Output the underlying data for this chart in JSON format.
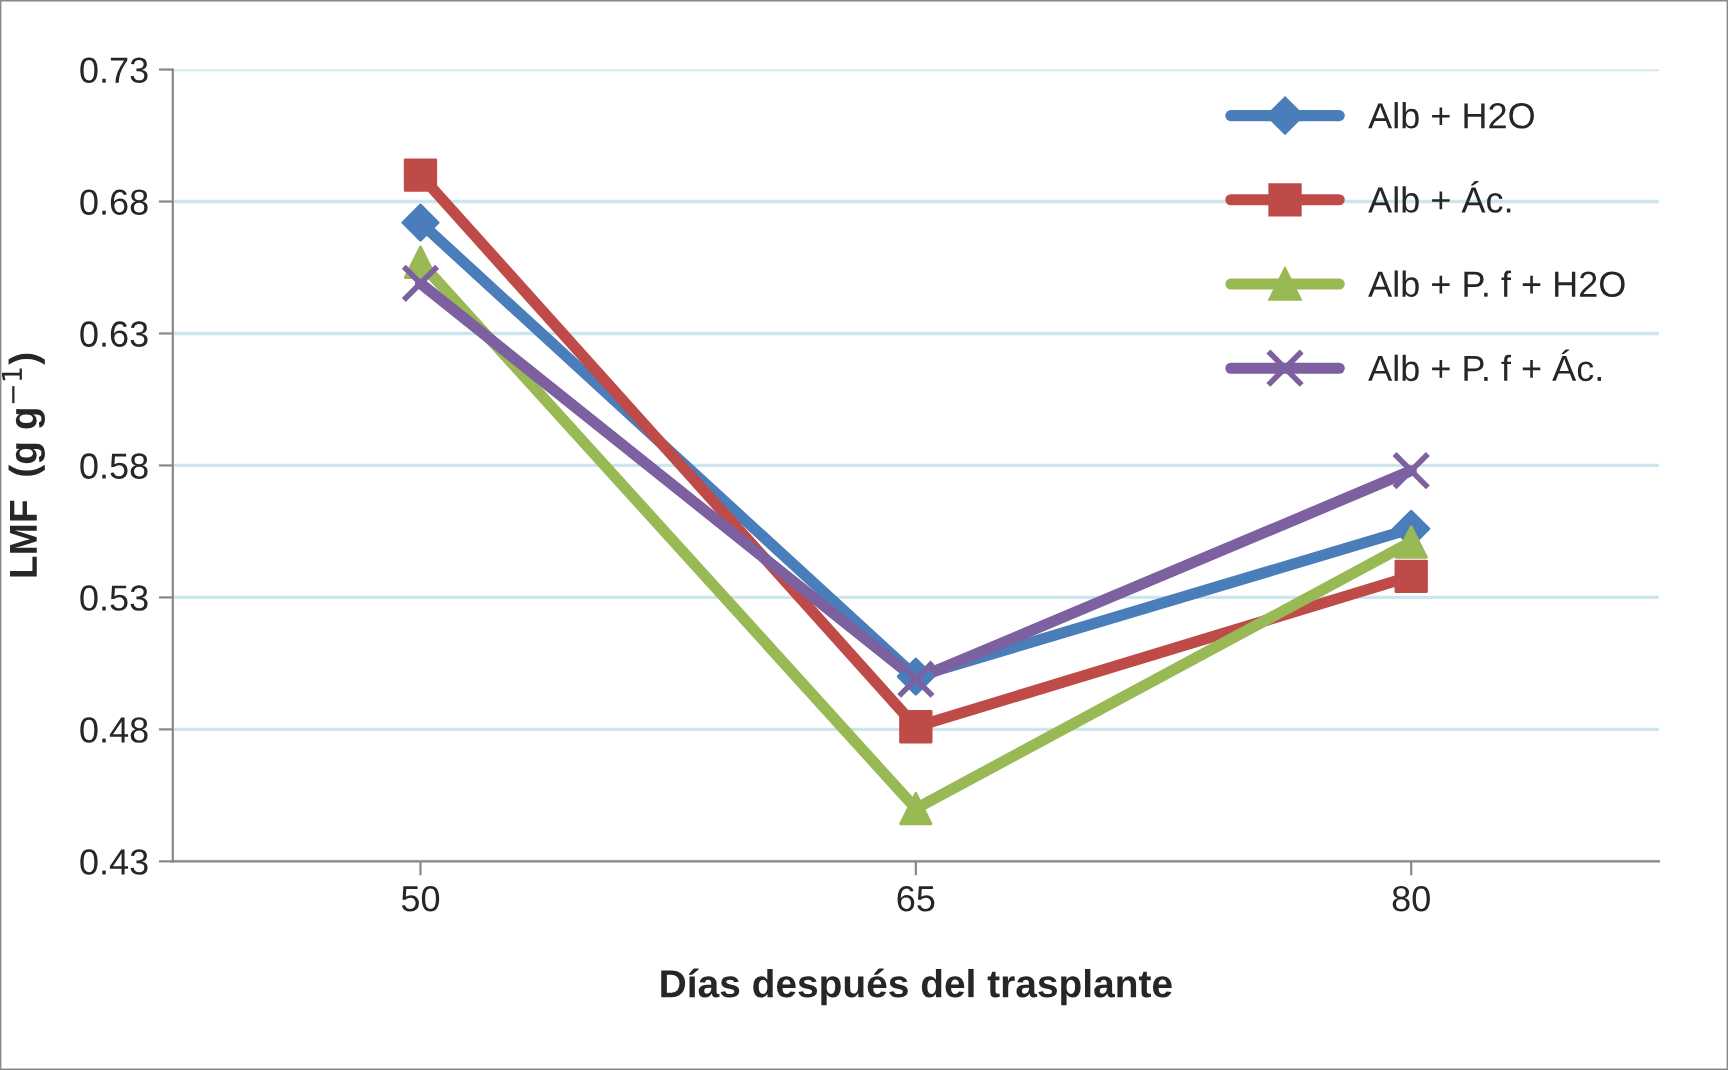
{
  "chart_data": {
    "type": "line",
    "xlabel": "Días después del trasplante",
    "ylabel": "LMF  (g g$^{−1}$)",
    "x": [
      50,
      65,
      80
    ],
    "xlim": [
      42.5,
      87.5
    ],
    "xticks": [
      50,
      65,
      80
    ],
    "series": [
      {
        "name": "Alb + H2O",
        "color": "#4a7ebb",
        "marker": "diamond",
        "values": [
          0.672,
          0.5,
          0.556
        ]
      },
      {
        "name": "Alb + Ác.",
        "color": "#be4b48",
        "marker": "square",
        "values": [
          0.69,
          0.481,
          0.538
        ]
      },
      {
        "name": "Alb + P. f + H2O",
        "color": "#98b954",
        "marker": "triangle",
        "values": [
          0.657,
          0.45,
          0.551
        ]
      },
      {
        "name": "Alb + P. f + Ác.",
        "color": "#7d60a0",
        "marker": "cross",
        "values": [
          0.649,
          0.499,
          0.578
        ]
      }
    ],
    "ylim": [
      0.43,
      0.73
    ],
    "yticks": [
      0.43,
      0.48,
      0.53,
      0.58,
      0.63,
      0.68,
      0.73
    ],
    "grid": "y",
    "legend": "top right",
    "line_style": "solid"
  }
}
